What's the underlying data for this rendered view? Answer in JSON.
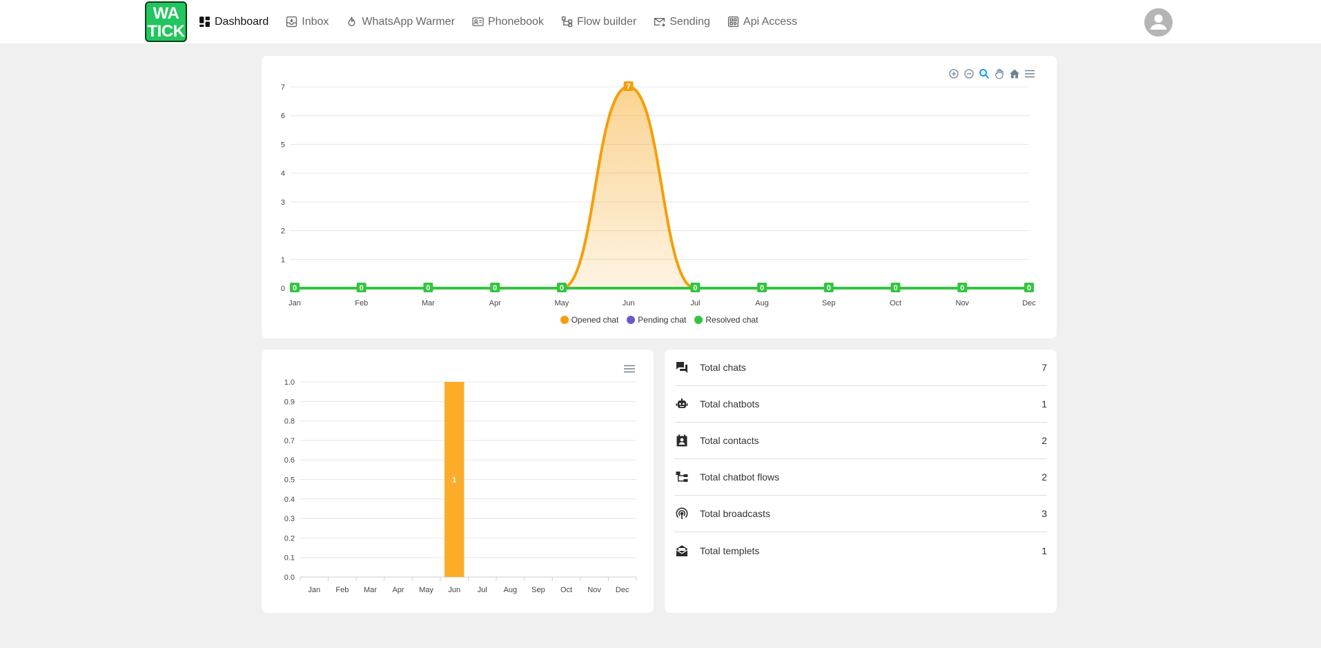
{
  "header": {
    "logo_line1": "WA",
    "logo_line2": "TICK",
    "nav": [
      {
        "label": "Dashboard",
        "active": true
      },
      {
        "label": "Inbox"
      },
      {
        "label": "WhatsApp Warmer"
      },
      {
        "label": "Phonebook"
      },
      {
        "label": "Flow builder"
      },
      {
        "label": "Sending"
      },
      {
        "label": "Api Access"
      }
    ]
  },
  "colors": {
    "opened": "#f59e0b",
    "pending": "#6a5acd",
    "resolved": "#33c53f",
    "bar": "#fbad2a",
    "logo": "#22c55e"
  },
  "chart_data": [
    {
      "type": "area",
      "categories": [
        "Jan",
        "Feb",
        "Mar",
        "Apr",
        "May",
        "Jun",
        "Jul",
        "Aug",
        "Sep",
        "Oct",
        "Nov",
        "Dec"
      ],
      "series": [
        {
          "name": "Opened chat",
          "values": [
            0,
            0,
            0,
            0,
            0,
            7,
            0,
            0,
            0,
            0,
            0,
            0
          ]
        },
        {
          "name": "Pending chat",
          "values": [
            0,
            0,
            0,
            0,
            0,
            0,
            0,
            0,
            0,
            0,
            0,
            0
          ]
        },
        {
          "name": "Resolved chat",
          "values": [
            0,
            0,
            0,
            0,
            0,
            0,
            0,
            0,
            0,
            0,
            0,
            0
          ]
        }
      ],
      "ylim": [
        0,
        7
      ],
      "yticks": [
        "0",
        "1",
        "2",
        "3",
        "4",
        "5",
        "6",
        "7"
      ],
      "grid": true,
      "legend": "bottom-center",
      "data_labels": true
    },
    {
      "type": "bar",
      "categories": [
        "Jan",
        "Feb",
        "Mar",
        "Apr",
        "May",
        "Jun",
        "Jul",
        "Aug",
        "Sep",
        "Oct",
        "Nov",
        "Dec"
      ],
      "values": [
        0,
        0,
        0,
        0,
        0,
        1,
        0,
        0,
        0,
        0,
        0,
        0
      ],
      "ylim": [
        0,
        1.0
      ],
      "yticks": [
        "0.0",
        "0.1",
        "0.2",
        "0.3",
        "0.4",
        "0.5",
        "0.6",
        "0.7",
        "0.8",
        "0.9",
        "1.0"
      ],
      "grid": true
    }
  ],
  "stats": [
    {
      "label": "Total chats",
      "value": "7",
      "icon": "chat-icon"
    },
    {
      "label": "Total chatbots",
      "value": "1",
      "icon": "robot-icon"
    },
    {
      "label": "Total contacts",
      "value": "2",
      "icon": "contact-icon"
    },
    {
      "label": "Total chatbot flows",
      "value": "2",
      "icon": "flow-icon"
    },
    {
      "label": "Total broadcasts",
      "value": "3",
      "icon": "broadcast-icon"
    },
    {
      "label": "Total templets",
      "value": "1",
      "icon": "template-icon"
    }
  ]
}
